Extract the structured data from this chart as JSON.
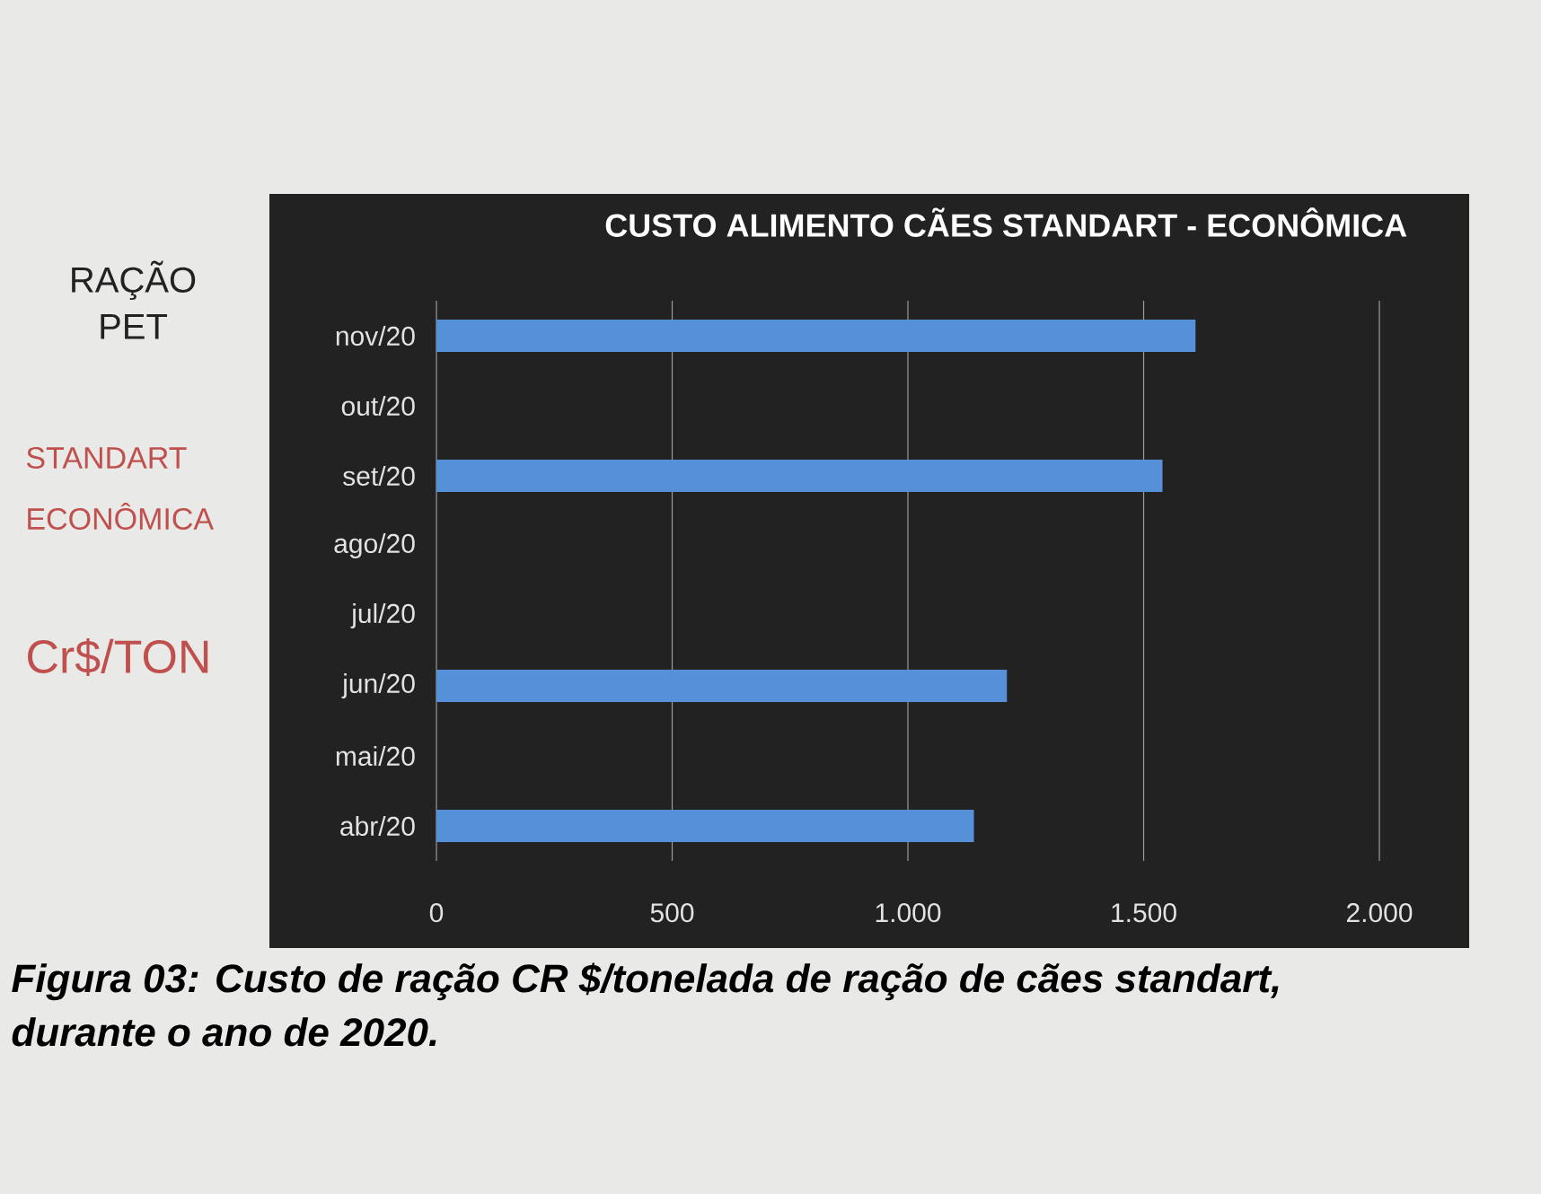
{
  "chart_data": {
    "type": "bar",
    "orientation": "horizontal",
    "title": "CUSTO ALIMENTO CÃES STANDART - ECONÔMICA",
    "categories": [
      "nov/20",
      "out/20",
      "set/20",
      "ago/20",
      "jul/20",
      "jun/20",
      "mai/20",
      "abr/20"
    ],
    "values": [
      1610,
      null,
      1540,
      null,
      null,
      1210,
      null,
      1140
    ],
    "color": "#5590d8",
    "xlim": [
      0,
      2000
    ],
    "xticks": [
      0,
      500,
      {
        "value": 1000,
        "label": "1.000"
      },
      {
        "value": 1500,
        "label": "1.500"
      },
      {
        "value": 2000,
        "label": "2.000"
      }
    ],
    "grid": "x",
    "annotations": [
      "RAÇÃO PET",
      "STANDART ECONÔMICA",
      "Cr$/TON",
      "Figura 03: Custo de ração CR $/tonelada de ração de cães standart, durante o ano de 2020."
    ]
  }
}
